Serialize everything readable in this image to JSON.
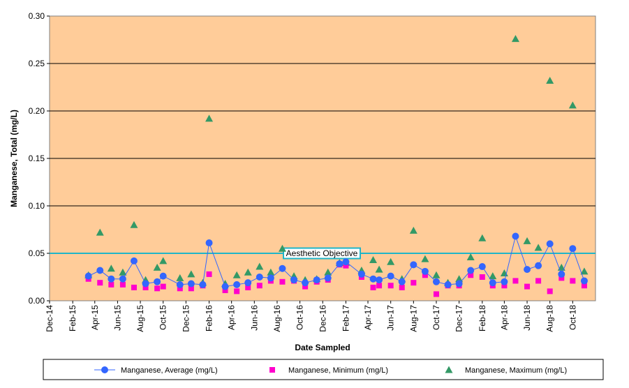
{
  "chart_data": {
    "type": "scatter",
    "title": "",
    "xlabel": "Date Sampled",
    "ylabel": "Manganese, Total (mg/L)",
    "ylim": [
      0,
      0.3
    ],
    "yticks": [
      0.0,
      0.05,
      0.1,
      0.15,
      0.2,
      0.25,
      0.3
    ],
    "ytick_labels": [
      "0.00",
      "0.05",
      "0.10",
      "0.15",
      "0.20",
      "0.25",
      "0.30"
    ],
    "xlim": [
      "2014-12-01",
      "2018-12-01"
    ],
    "xticks": [
      "2014-12-01",
      "2015-02-01",
      "2015-04-01",
      "2015-06-01",
      "2015-08-01",
      "2015-10-01",
      "2015-12-01",
      "2016-02-01",
      "2016-04-01",
      "2016-06-01",
      "2016-08-01",
      "2016-10-01",
      "2016-12-01",
      "2017-02-01",
      "2017-04-01",
      "2017-06-01",
      "2017-08-01",
      "2017-10-01",
      "2017-12-01",
      "2018-02-01",
      "2018-04-01",
      "2018-06-01",
      "2018-08-01",
      "2018-10-01"
    ],
    "xtick_labels": [
      "Dec-14",
      "Feb-15",
      "Apr-15",
      "Jun-15",
      "Aug-15",
      "Oct-15",
      "Dec-15",
      "Feb-16",
      "Apr-16",
      "Jun-16",
      "Aug-16",
      "Oct-16",
      "Dec-16",
      "Feb-17",
      "Apr-17",
      "Jun-17",
      "Aug-17",
      "Oct-17",
      "Dec-17",
      "Feb-18",
      "Apr-18",
      "Jun-18",
      "Aug-18",
      "Oct-18"
    ],
    "grid": true,
    "legend_position": "bottom",
    "plot_background": "#FFCC99",
    "reference_line": {
      "label": "Aesthetic Objective",
      "y": 0.05,
      "color": "#1FB5C8"
    },
    "x": [
      "2015-03-15",
      "2015-04-15",
      "2015-05-15",
      "2015-06-15",
      "2015-07-15",
      "2015-08-15",
      "2015-09-15",
      "2015-10-01",
      "2015-11-15",
      "2015-12-15",
      "2016-01-15",
      "2016-02-01",
      "2016-03-15",
      "2016-04-15",
      "2016-05-15",
      "2016-06-15",
      "2016-07-15",
      "2016-08-15",
      "2016-09-15",
      "2016-10-15",
      "2016-11-15",
      "2016-12-15",
      "2017-01-15",
      "2017-02-01",
      "2017-03-15",
      "2017-04-15",
      "2017-05-01",
      "2017-06-01",
      "2017-07-01",
      "2017-08-01",
      "2017-09-01",
      "2017-10-01",
      "2017-11-01",
      "2017-12-01",
      "2018-01-01",
      "2018-02-01",
      "2018-03-01",
      "2018-04-01",
      "2018-05-01",
      "2018-06-01",
      "2018-07-01",
      "2018-08-01",
      "2018-09-01",
      "2018-10-01",
      "2018-11-01"
    ],
    "series": [
      {
        "name": "Manganese, Average (mg/L)",
        "color": "#3366FF",
        "marker": "circle",
        "line": true,
        "values": [
          0.026,
          0.032,
          0.023,
          0.023,
          0.042,
          0.018,
          0.02,
          0.026,
          0.017,
          0.018,
          0.017,
          0.061,
          0.015,
          0.017,
          0.019,
          0.025,
          0.024,
          0.034,
          0.022,
          0.019,
          0.022,
          0.024,
          0.039,
          0.041,
          0.028,
          0.023,
          0.022,
          0.026,
          0.02,
          0.038,
          0.031,
          0.02,
          0.017,
          0.018,
          0.032,
          0.036,
          0.019,
          0.02,
          0.068,
          0.033,
          0.037,
          0.06,
          0.028,
          0.055,
          0.021
        ]
      },
      {
        "name": "Manganese, Minimum (mg/L)",
        "color": "#FF00CC",
        "marker": "square",
        "line": false,
        "values": [
          0.023,
          0.019,
          0.017,
          0.017,
          0.014,
          0.014,
          0.013,
          0.015,
          0.013,
          0.013,
          0.016,
          0.028,
          0.011,
          0.01,
          0.014,
          0.016,
          0.021,
          0.02,
          0.021,
          0.015,
          0.02,
          0.022,
          0.038,
          0.037,
          0.025,
          0.014,
          0.016,
          0.016,
          0.014,
          0.019,
          0.027,
          0.007,
          0.016,
          0.016,
          0.027,
          0.025,
          0.016,
          0.016,
          0.021,
          0.015,
          0.021,
          0.01,
          0.024,
          0.021,
          0.016
        ]
      },
      {
        "name": "Manganese, Maximum (mg/L)",
        "color": "#339966",
        "marker": "triangle",
        "line": false,
        "values": [
          0.027,
          0.072,
          0.034,
          0.03,
          0.08,
          0.022,
          0.035,
          0.042,
          0.024,
          0.028,
          0.019,
          0.192,
          0.018,
          0.027,
          0.03,
          0.036,
          0.03,
          0.055,
          0.026,
          0.022,
          0.023,
          0.03,
          0.04,
          0.04,
          0.032,
          0.043,
          0.033,
          0.041,
          0.023,
          0.074,
          0.044,
          0.027,
          0.019,
          0.023,
          0.046,
          0.066,
          0.026,
          0.029,
          0.276,
          0.063,
          0.056,
          0.232,
          0.035,
          0.206,
          0.031
        ]
      }
    ]
  }
}
